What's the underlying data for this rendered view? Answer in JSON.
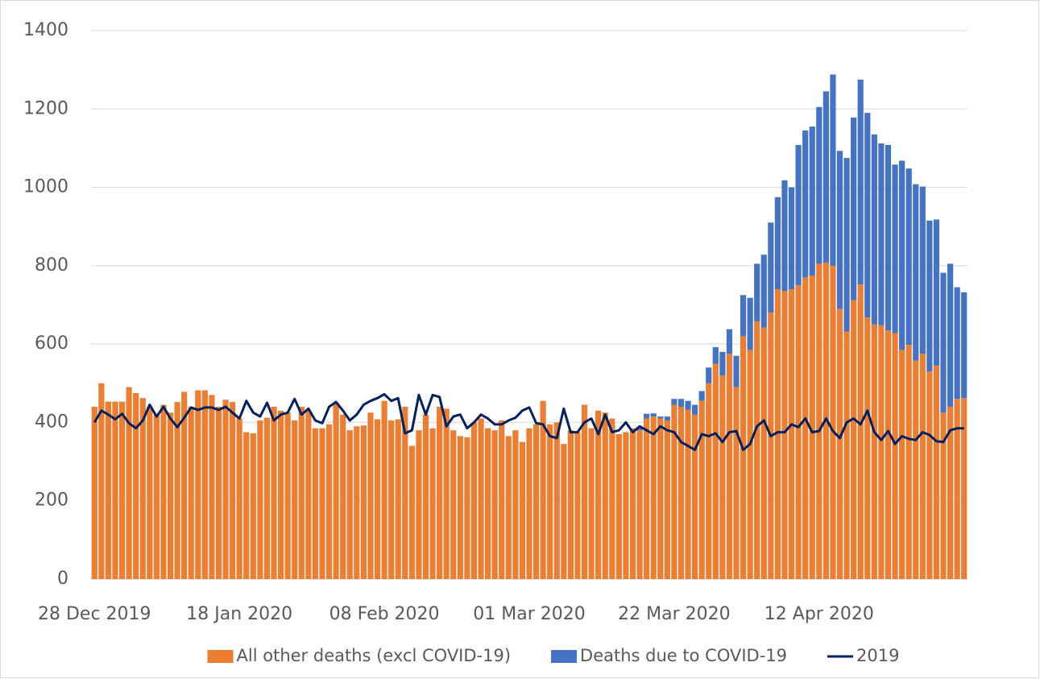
{
  "chart_data": {
    "type": "bar",
    "stacked": true,
    "grid": true,
    "categories": [
      "28 Dec 2019",
      null,
      null,
      null,
      null,
      null,
      null,
      null,
      null,
      null,
      null,
      null,
      null,
      null,
      null,
      null,
      null,
      null,
      null,
      null,
      null,
      "18 Jan 2020",
      null,
      null,
      null,
      null,
      null,
      null,
      null,
      null,
      null,
      null,
      null,
      null,
      null,
      null,
      null,
      null,
      null,
      null,
      null,
      null,
      "08 Feb 2020",
      null,
      null,
      null,
      null,
      null,
      null,
      null,
      null,
      null,
      null,
      null,
      null,
      null,
      null,
      null,
      null,
      null,
      null,
      null,
      null,
      "01 Mar 2020",
      null,
      null,
      null,
      null,
      null,
      null,
      null,
      null,
      null,
      null,
      null,
      null,
      null,
      null,
      null,
      null,
      null,
      null,
      null,
      null,
      "22 Mar 2020",
      null,
      null,
      null,
      null,
      null,
      null,
      null,
      null,
      null,
      null,
      null,
      null,
      null,
      null,
      null,
      null,
      null,
      null,
      null,
      null,
      "12 Apr 2020",
      null,
      null,
      null,
      null,
      null,
      null,
      null,
      null,
      null,
      null,
      null,
      null,
      null,
      null,
      null,
      null,
      null,
      null,
      null,
      null,
      null
    ],
    "series": [
      {
        "name": "All other deaths (excl COVID-19)",
        "color": "#ed7d31",
        "values": [
          440,
          500,
          453,
          453,
          453,
          490,
          475,
          462,
          440,
          420,
          445,
          425,
          452,
          478,
          440,
          482,
          482,
          470,
          440,
          458,
          452,
          410,
          375,
          372,
          405,
          412,
          440,
          430,
          425,
          405,
          440,
          430,
          385,
          385,
          395,
          450,
          420,
          380,
          390,
          392,
          425,
          408,
          455,
          405,
          408,
          440,
          340,
          380,
          420,
          385,
          440,
          435,
          380,
          365,
          362,
          400,
          410,
          385,
          380,
          405,
          365,
          380,
          350,
          385,
          395,
          455,
          395,
          400,
          345,
          380,
          375,
          445,
          385,
          430,
          425,
          410,
          370,
          375,
          385,
          380,
          410,
          415,
          410,
          405,
          445,
          440,
          432,
          420,
          455,
          500,
          550,
          520,
          575,
          490,
          620,
          585,
          658,
          642,
          680,
          740,
          735,
          740,
          750,
          770,
          775,
          805,
          808,
          800,
          690,
          632,
          712,
          752,
          668,
          650,
          648,
          635,
          628,
          585,
          598,
          558,
          575,
          530,
          545,
          425,
          440,
          460,
          462
        ]
      },
      {
        "name": "Deaths due to COVID-19",
        "color": "#4472c4",
        "values": [
          0,
          0,
          0,
          0,
          0,
          0,
          0,
          0,
          0,
          0,
          0,
          0,
          0,
          0,
          0,
          0,
          0,
          0,
          0,
          0,
          0,
          0,
          0,
          0,
          0,
          0,
          0,
          0,
          0,
          0,
          0,
          0,
          0,
          0,
          0,
          0,
          0,
          0,
          0,
          0,
          0,
          0,
          0,
          0,
          0,
          0,
          0,
          0,
          0,
          0,
          0,
          0,
          0,
          0,
          0,
          0,
          0,
          0,
          0,
          0,
          0,
          0,
          0,
          0,
          0,
          0,
          0,
          0,
          0,
          0,
          0,
          0,
          0,
          0,
          0,
          0,
          0,
          0,
          0,
          5,
          12,
          8,
          5,
          10,
          15,
          20,
          23,
          25,
          25,
          40,
          42,
          60,
          63,
          80,
          105,
          133,
          147,
          186,
          230,
          235,
          283,
          260,
          358,
          375,
          380,
          400,
          437,
          488,
          403,
          443,
          466,
          523,
          522,
          485,
          464,
          473,
          430,
          483,
          450,
          450,
          427,
          385,
          373,
          357,
          365,
          285,
          270
        ]
      },
      {
        "name": "2019",
        "color": "#002060",
        "type": "line",
        "values": [
          400,
          430,
          420,
          408,
          422,
          398,
          385,
          405,
          445,
          415,
          440,
          410,
          388,
          412,
          438,
          432,
          438,
          438,
          432,
          440,
          425,
          410,
          455,
          425,
          415,
          450,
          405,
          420,
          425,
          460,
          420,
          435,
          405,
          398,
          440,
          452,
          430,
          405,
          420,
          445,
          455,
          462,
          472,
          455,
          462,
          372,
          380,
          470,
          420,
          470,
          465,
          390,
          415,
          420,
          385,
          400,
          420,
          410,
          395,
          395,
          405,
          412,
          430,
          438,
          398,
          395,
          365,
          360,
          435,
          375,
          375,
          400,
          410,
          370,
          420,
          375,
          380,
          400,
          375,
          390,
          380,
          370,
          390,
          380,
          375,
          350,
          340,
          330,
          370,
          365,
          372,
          350,
          375,
          378,
          330,
          345,
          390,
          405,
          365,
          375,
          375,
          395,
          388,
          410,
          375,
          378,
          410,
          378,
          360,
          400,
          410,
          395,
          430,
          375,
          355,
          378,
          345,
          365,
          358,
          355,
          375,
          368,
          352,
          350,
          380,
          385,
          385
        ]
      }
    ],
    "ylim": [
      0,
      1400
    ],
    "yticks": [
      0,
      200,
      400,
      600,
      800,
      1000,
      1200,
      1400
    ]
  }
}
